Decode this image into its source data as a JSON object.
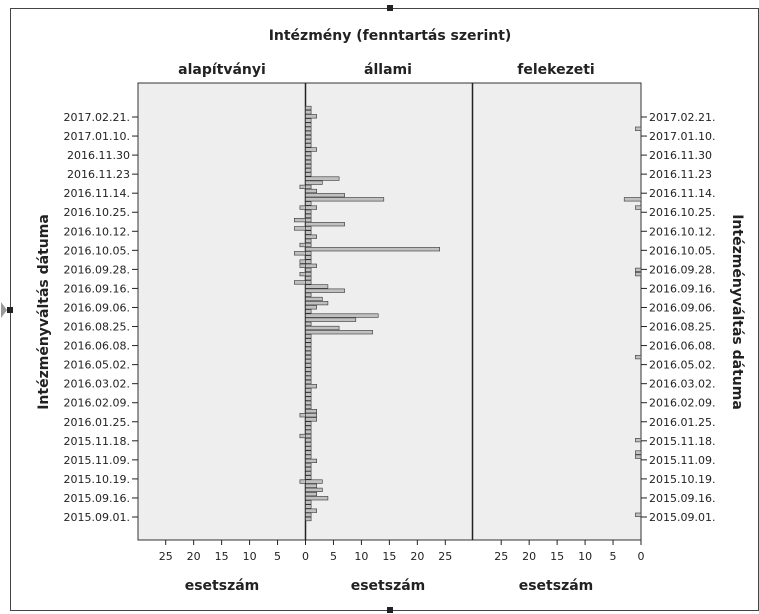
{
  "chart_data": {
    "type": "bar",
    "orientation": "horizontal",
    "layout": "population-pyramid-panels",
    "title": "Intézmény (fenntartás szerint)",
    "panels": [
      "alapítványi",
      "állami",
      "felekezeti"
    ],
    "xlabel": "esetszám",
    "ylabel": "Intézményváltás dátuma",
    "x_ticks": [
      25,
      20,
      15,
      10,
      5,
      0
    ],
    "x_ticks_right": [
      0,
      5,
      10,
      15,
      20,
      25
    ],
    "xlim": [
      0,
      27
    ],
    "y_tick_labels": [
      "2017.02.21.",
      "2017.01.10.",
      "2016.11.30",
      "2016.11.23",
      "2016.11.14.",
      "2016.10.25.",
      "2016.10.12.",
      "2016.10.05.",
      "2016.09.28.",
      "2016.09.16.",
      "2016.09.06.",
      "2016.08.25.",
      "2016.06.08.",
      "2016.05.02.",
      "2016.03.02.",
      "2016.02.09.",
      "2016.01.25.",
      "2015.11.18.",
      "2015.11.09.",
      "2015.10.19.",
      "2015.09.16.",
      "2015.09.01."
    ],
    "y_tick_labels_left": [
      "2017.02.21.",
      "2017.01.10.",
      "2016.11.30",
      "2016.11.23",
      "2016.11.14.",
      "2016.10.25.",
      "2016.10.12.",
      "2016.10.05.",
      "2016.09.28.",
      "2016.09.16.",
      "2016.09.06.",
      "2016.08.25.",
      "2016.06.08.",
      "2016.05.02.",
      "2016.03.02.",
      "2016.02.09.",
      "2016.01.25.",
      "2015.11.18.",
      "2015.11.09.",
      "2015.10.19.",
      "2015.09.16.",
      "2015.09.01."
    ],
    "series": [
      {
        "name": "alapítványi",
        "values": [
          0,
          0,
          0,
          0,
          0,
          0,
          0,
          0,
          0,
          0,
          0,
          0,
          0,
          0,
          0,
          0,
          0,
          0,
          0,
          1,
          0,
          0,
          0,
          0,
          1,
          0,
          0,
          2,
          0,
          2,
          0,
          0,
          0,
          1,
          0,
          2,
          0,
          1,
          1,
          0,
          1,
          0,
          2,
          0,
          0,
          0,
          0,
          0,
          0,
          0,
          0,
          0,
          0,
          0,
          0,
          0,
          0,
          0,
          0,
          0,
          0,
          0,
          0,
          0,
          0,
          0,
          0,
          0,
          0,
          0,
          0,
          0,
          0,
          0,
          1,
          0,
          0,
          0,
          0,
          1,
          0,
          0,
          0,
          0,
          0,
          0,
          0,
          0,
          0,
          0,
          1,
          0,
          0,
          0,
          0,
          0,
          0,
          0,
          0,
          0
        ]
      },
      {
        "name": "állami",
        "values": [
          1,
          1,
          2,
          1,
          1,
          1,
          1,
          1,
          1,
          1,
          2,
          1,
          1,
          1,
          1,
          1,
          1,
          6,
          3,
          1,
          2,
          7,
          14,
          1,
          2,
          1,
          1,
          1,
          7,
          1,
          1,
          2,
          1,
          1,
          24,
          1,
          1,
          1,
          2,
          1,
          1,
          1,
          1,
          4,
          7,
          1,
          3,
          4,
          2,
          1,
          13,
          9,
          1,
          6,
          12,
          1,
          1,
          1,
          1,
          1,
          1,
          1,
          1,
          1,
          1,
          1,
          1,
          2,
          1,
          1,
          1,
          1,
          1,
          2,
          2,
          2,
          1,
          1,
          1,
          1,
          1,
          1,
          1,
          1,
          1,
          2,
          1,
          1,
          1,
          1,
          3,
          2,
          3,
          2,
          4,
          1,
          1,
          2,
          1,
          1
        ]
      },
      {
        "name": "felekezeti",
        "values": [
          0,
          0,
          0,
          0,
          0,
          1,
          0,
          0,
          0,
          0,
          0,
          0,
          0,
          0,
          0,
          0,
          0,
          0,
          0,
          0,
          0,
          0,
          3,
          0,
          1,
          0,
          0,
          0,
          0,
          0,
          0,
          0,
          0,
          0,
          0,
          0,
          0,
          0,
          0,
          1,
          1,
          0,
          0,
          0,
          0,
          0,
          0,
          0,
          0,
          0,
          0,
          0,
          0,
          0,
          0,
          0,
          0,
          0,
          0,
          0,
          1,
          0,
          0,
          0,
          0,
          0,
          0,
          0,
          0,
          0,
          0,
          0,
          0,
          0,
          0,
          0,
          0,
          0,
          0,
          0,
          1,
          0,
          0,
          1,
          1,
          0,
          0,
          0,
          0,
          0,
          0,
          0,
          0,
          0,
          0,
          0,
          0,
          0,
          1,
          0
        ]
      }
    ],
    "bar_color": "#c0c0c0",
    "panel_background": "#eeeeee",
    "grid": false
  }
}
